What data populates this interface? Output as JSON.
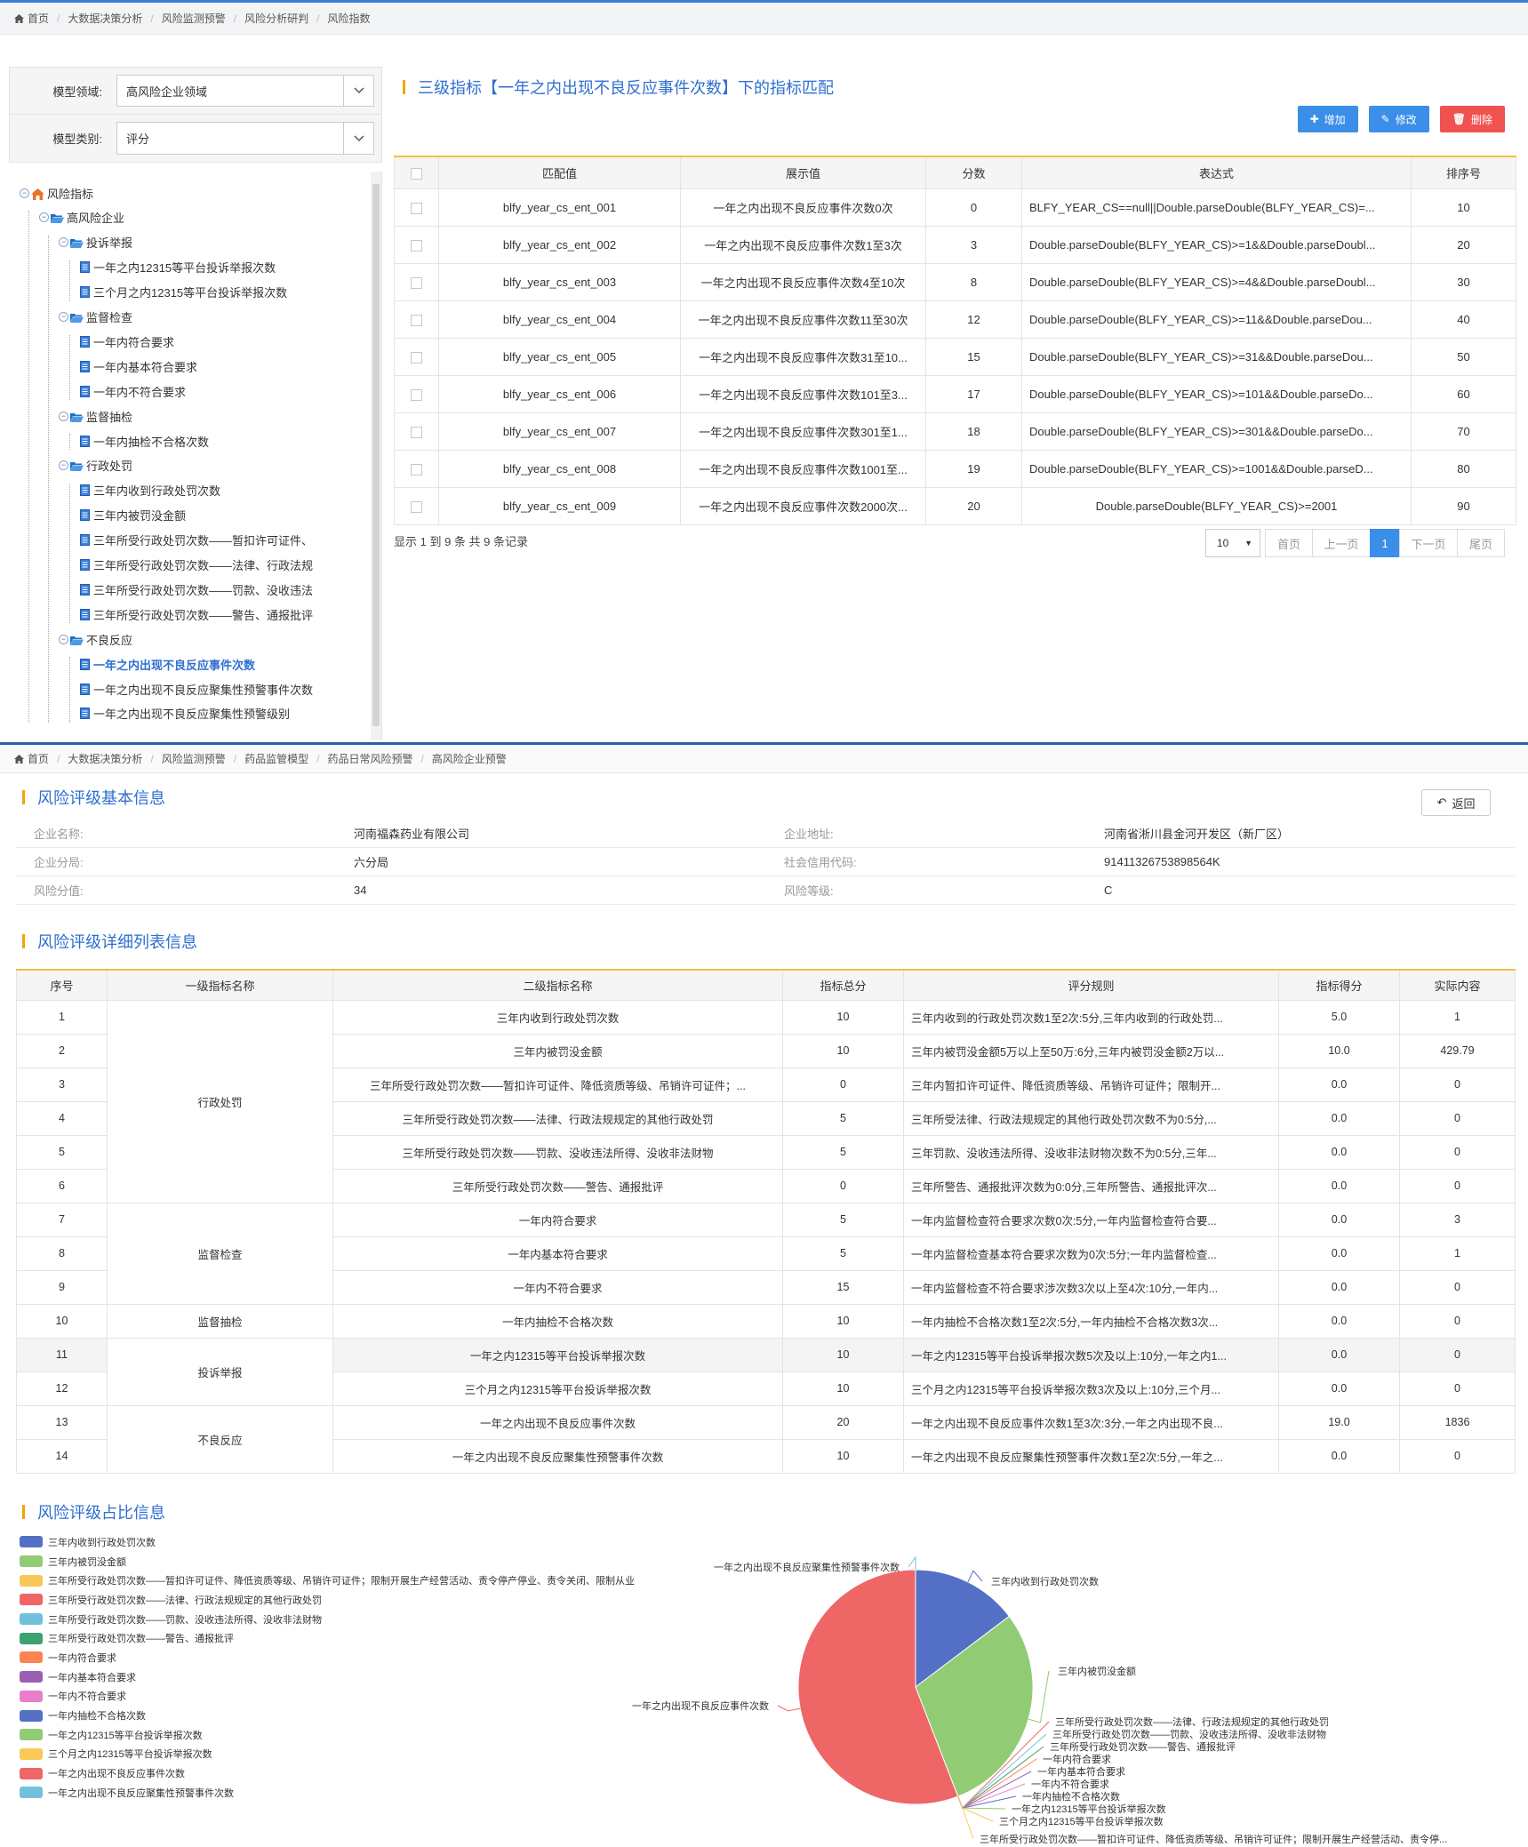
{
  "top": {
    "breadcrumb": [
      "首页",
      "大数据决策分析",
      "风险监测预警",
      "风险分析研判",
      "风险指数"
    ],
    "form": {
      "domain_label": "模型领域:",
      "domain_value": "高风险企业领域",
      "category_label": "模型类别:",
      "category_value": "评分"
    },
    "tree": [
      {
        "text": "风险指标",
        "level": 0,
        "kind": "root"
      },
      {
        "text": "高风险企业",
        "level": 1,
        "kind": "folder"
      },
      {
        "text": "投诉举报",
        "level": 2,
        "kind": "folder"
      },
      {
        "text": "一年之内12315等平台投诉举报次数",
        "level": 3,
        "kind": "file"
      },
      {
        "text": "三个月之内12315等平台投诉举报次数",
        "level": 3,
        "kind": "file"
      },
      {
        "text": "监督检查",
        "level": 2,
        "kind": "folder"
      },
      {
        "text": "一年内符合要求",
        "level": 3,
        "kind": "file"
      },
      {
        "text": "一年内基本符合要求",
        "level": 3,
        "kind": "file"
      },
      {
        "text": "一年内不符合要求",
        "level": 3,
        "kind": "file"
      },
      {
        "text": "监督抽检",
        "level": 2,
        "kind": "folder"
      },
      {
        "text": "一年内抽检不合格次数",
        "level": 3,
        "kind": "file"
      },
      {
        "text": "行政处罚",
        "level": 2,
        "kind": "folder"
      },
      {
        "text": "三年内收到行政处罚次数",
        "level": 3,
        "kind": "file"
      },
      {
        "text": "三年内被罚没金额",
        "level": 3,
        "kind": "file"
      },
      {
        "text": "三年所受行政处罚次数——暂扣许可证件、",
        "level": 3,
        "kind": "file"
      },
      {
        "text": "三年所受行政处罚次数——法律、行政法规",
        "level": 3,
        "kind": "file"
      },
      {
        "text": "三年所受行政处罚次数——罚款、没收违法",
        "level": 3,
        "kind": "file"
      },
      {
        "text": "三年所受行政处罚次数——警告、通报批评",
        "level": 3,
        "kind": "file"
      },
      {
        "text": "不良反应",
        "level": 2,
        "kind": "folder"
      },
      {
        "text": "一年之内出现不良反应事件次数",
        "level": 3,
        "kind": "file",
        "active": true
      },
      {
        "text": "一年之内出现不良反应聚集性预警事件次数",
        "level": 3,
        "kind": "file"
      },
      {
        "text": "一年之内出现不良反应聚集性预警级别",
        "level": 3,
        "kind": "file"
      }
    ],
    "title": "三级指标【一年之内出现不良反应事件次数】下的指标匹配",
    "buttons": {
      "add": "增加",
      "edit": "修改",
      "delete": "删除"
    },
    "table": {
      "headers": [
        "匹配值",
        "展示值",
        "分数",
        "表达式",
        "排序号"
      ],
      "rows": [
        [
          "blfy_year_cs_ent_001",
          "一年之内出现不良反应事件次数0次",
          "0",
          "BLFY_YEAR_CS==null||Double.parseDouble(BLFY_YEAR_CS)=...",
          "10"
        ],
        [
          "blfy_year_cs_ent_002",
          "一年之内出现不良反应事件次数1至3次",
          "3",
          "Double.parseDouble(BLFY_YEAR_CS)>=1&&Double.parseDoubl...",
          "20"
        ],
        [
          "blfy_year_cs_ent_003",
          "一年之内出现不良反应事件次数4至10次",
          "8",
          "Double.parseDouble(BLFY_YEAR_CS)>=4&&Double.parseDoubl...",
          "30"
        ],
        [
          "blfy_year_cs_ent_004",
          "一年之内出现不良反应事件次数11至30次",
          "12",
          "Double.parseDouble(BLFY_YEAR_CS)>=11&&Double.parseDou...",
          "40"
        ],
        [
          "blfy_year_cs_ent_005",
          "一年之内出现不良反应事件次数31至10...",
          "15",
          "Double.parseDouble(BLFY_YEAR_CS)>=31&&Double.parseDou...",
          "50"
        ],
        [
          "blfy_year_cs_ent_006",
          "一年之内出现不良反应事件次数101至3...",
          "17",
          "Double.parseDouble(BLFY_YEAR_CS)>=101&&Double.parseDo...",
          "60"
        ],
        [
          "blfy_year_cs_ent_007",
          "一年之内出现不良反应事件次数301至1...",
          "18",
          "Double.parseDouble(BLFY_YEAR_CS)>=301&&Double.parseDo...",
          "70"
        ],
        [
          "blfy_year_cs_ent_008",
          "一年之内出现不良反应事件次数1001至...",
          "19",
          "Double.parseDouble(BLFY_YEAR_CS)>=1001&&Double.parseD...",
          "80"
        ],
        [
          "blfy_year_cs_ent_009",
          "一年之内出现不良反应事件次数2000次...",
          "20",
          "Double.parseDouble(BLFY_YEAR_CS)>=2001",
          "90"
        ]
      ]
    },
    "pager": {
      "info": "显示 1 到 9 条 共 9 条记录",
      "page_size": "10",
      "first": "首页",
      "prev": "上一页",
      "current": "1",
      "next": "下一页",
      "last": "尾页"
    }
  },
  "bottom": {
    "breadcrumb": [
      "首页",
      "大数据决策分析",
      "风险监测预警",
      "药品监管模型",
      "药品日常风险预警",
      "高风险企业预警"
    ],
    "basic_title": "风险评级基本信息",
    "back_label": "返回",
    "info": [
      {
        "k1": "企业名称:",
        "v1": "河南福森药业有限公司",
        "k2": "企业地址:",
        "v2": "河南省淅川县金河开发区（新厂区）"
      },
      {
        "k1": "企业分局:",
        "v1": "六分局",
        "k2": "社会信用代码:",
        "v2": "91411326753898564K"
      },
      {
        "k1": "风险分值:",
        "v1": "34",
        "k2": "风险等级:",
        "v2": "C"
      }
    ],
    "detail_title": "风险评级详细列表信息",
    "detail_headers": [
      "序号",
      "一级指标名称",
      "二级指标名称",
      "指标总分",
      "评分规则",
      "指标得分",
      "实际内容"
    ],
    "detail_rows": [
      [
        "1",
        "三年内收到行政处罚次数",
        "10",
        "三年内收到的行政处罚次数1至2次:5分,三年内收到的行政处罚...",
        "5.0",
        "1"
      ],
      [
        "2",
        "三年内被罚没金额",
        "10",
        "三年内被罚没金额5万以上至50万:6分,三年内被罚没金额2万以...",
        "10.0",
        "429.79"
      ],
      [
        "3",
        "三年所受行政处罚次数——暂扣许可证件、降低资质等级、吊销许可证件；...",
        "0",
        "三年内暂扣许可证件、降低资质等级、吊销许可证件；限制开...",
        "0.0",
        "0"
      ],
      [
        "4",
        "三年所受行政处罚次数——法律、行政法规规定的其他行政处罚",
        "5",
        "三年所受法律、行政法规规定的其他行政处罚次数不为0:5分,...",
        "0.0",
        "0"
      ],
      [
        "5",
        "三年所受行政处罚次数——罚款、没收违法所得、没收非法财物",
        "5",
        "三年罚款、没收违法所得、没收非法财物次数不为0:5分,三年...",
        "0.0",
        "0"
      ],
      [
        "6",
        "三年所受行政处罚次数——警告、通报批评",
        "0",
        "三年所警告、通报批评次数为0:0分,三年所警告、通报批评次...",
        "0.0",
        "0"
      ],
      [
        "7",
        "一年内符合要求",
        "5",
        "一年内监督检查符合要求次数0次:5分,一年内监督检查符合要...",
        "0.0",
        "3"
      ],
      [
        "8",
        "一年内基本符合要求",
        "5",
        "一年内监督检查基本符合要求次数为0次:5分;一年内监督检查...",
        "0.0",
        "1"
      ],
      [
        "9",
        "一年内不符合要求",
        "15",
        "一年内监督检查不符合要求涉次数3次以上至4次:10分,一年内...",
        "0.0",
        "0"
      ],
      [
        "10",
        "一年内抽检不合格次数",
        "10",
        "一年内抽检不合格次数1至2次:5分,一年内抽检不合格次数3次...",
        "0.0",
        "0"
      ],
      [
        "11",
        "一年之内12315等平台投诉举报次数",
        "10",
        "一年之内12315等平台投诉举报次数5次及以上:10分,一年之内1...",
        "0.0",
        "0"
      ],
      [
        "12",
        "三个月之内12315等平台投诉举报次数",
        "10",
        "三个月之内12315等平台投诉举报次数3次及以上:10分,三个月...",
        "0.0",
        "0"
      ],
      [
        "13",
        "一年之内出现不良反应事件次数",
        "20",
        "一年之内出现不良反应事件次数1至3次:3分,一年之内出现不良...",
        "19.0",
        "1836"
      ],
      [
        "14",
        "一年之内出现不良反应聚集性预警事件次数",
        "10",
        "一年之内出现不良反应聚集性预警事件次数1至2次:5分,一年之...",
        "0.0",
        "0"
      ]
    ],
    "detail_groups": [
      {
        "name": "行政处罚",
        "start": 0,
        "span": 6
      },
      {
        "name": "监督检查",
        "start": 6,
        "span": 3
      },
      {
        "name": "监督抽检",
        "start": 9,
        "span": 1
      },
      {
        "name": "投诉举报",
        "start": 10,
        "span": 2
      },
      {
        "name": "不良反应",
        "start": 12,
        "span": 2
      }
    ],
    "ratio_title": "风险评级占比信息"
  },
  "chart_data": {
    "type": "pie",
    "legend_position": "left",
    "slices": [
      {
        "name": "三年内收到行政处罚次数",
        "value": 5.0,
        "color": "#5470c6"
      },
      {
        "name": "三年内被罚没金额",
        "value": 10.0,
        "color": "#91cc75"
      },
      {
        "name": "三年所受行政处罚次数——暂扣许可证件、降低资质等级、吊销许可证件；限制开展生产经营活动、责令停产停业、责令关闭、限制从业",
        "value": 0.0,
        "color": "#fac858"
      },
      {
        "name": "三年所受行政处罚次数——法律、行政法规规定的其他行政处罚",
        "value": 0.0,
        "color": "#ee6666"
      },
      {
        "name": "三年所受行政处罚次数——罚款、没收违法所得、没收非法财物",
        "value": 0.0,
        "color": "#73c0de"
      },
      {
        "name": "三年所受行政处罚次数——警告、通报批评",
        "value": 0.0,
        "color": "#3ba272"
      },
      {
        "name": "一年内符合要求",
        "value": 0.0,
        "color": "#fc8452"
      },
      {
        "name": "一年内基本符合要求",
        "value": 0.0,
        "color": "#9a60b4"
      },
      {
        "name": "一年内不符合要求",
        "value": 0.0,
        "color": "#ea7ccc"
      },
      {
        "name": "一年内抽检不合格次数",
        "value": 0.0,
        "color": "#5470c6"
      },
      {
        "name": "一年之内12315等平台投诉举报次数",
        "value": 0.0,
        "color": "#91cc75"
      },
      {
        "name": "三个月之内12315等平台投诉举报次数",
        "value": 0.0,
        "color": "#fac858"
      },
      {
        "name": "一年之内出现不良反应事件次数",
        "value": 19.0,
        "color": "#ee6666"
      },
      {
        "name": "一年之内出现不良反应聚集性预警事件次数",
        "value": 0.0,
        "color": "#73c0de"
      }
    ],
    "outer_labels": {
      "0": "三年内收到行政处罚次数",
      "1": "三年内被罚没金额",
      "2": "三年所受行政处罚次数——暂扣许可证件、降低资质等级、吊销许可证件；限制开展生产经营活动、责令停...",
      "3": "三年所受行政处罚次数——法律、行政法规规定的其他行政处罚",
      "4": "三年所受行政处罚次数——罚款、没收违法所得、没收非法财物",
      "5": "三年所受行政处罚次数——警告、通报批评",
      "6": "一年内符合要求",
      "7": "一年内基本符合要求",
      "8": "一年内不符合要求",
      "9": "一年内抽检不合格次数",
      "10": "一年之内12315等平台投诉举报次数",
      "11": "三个月之内12315等平台投诉举报次数",
      "12": "一年之内出现不良反应事件次数",
      "13": "一年之内出现不良反应聚集性预警事件次数"
    }
  }
}
